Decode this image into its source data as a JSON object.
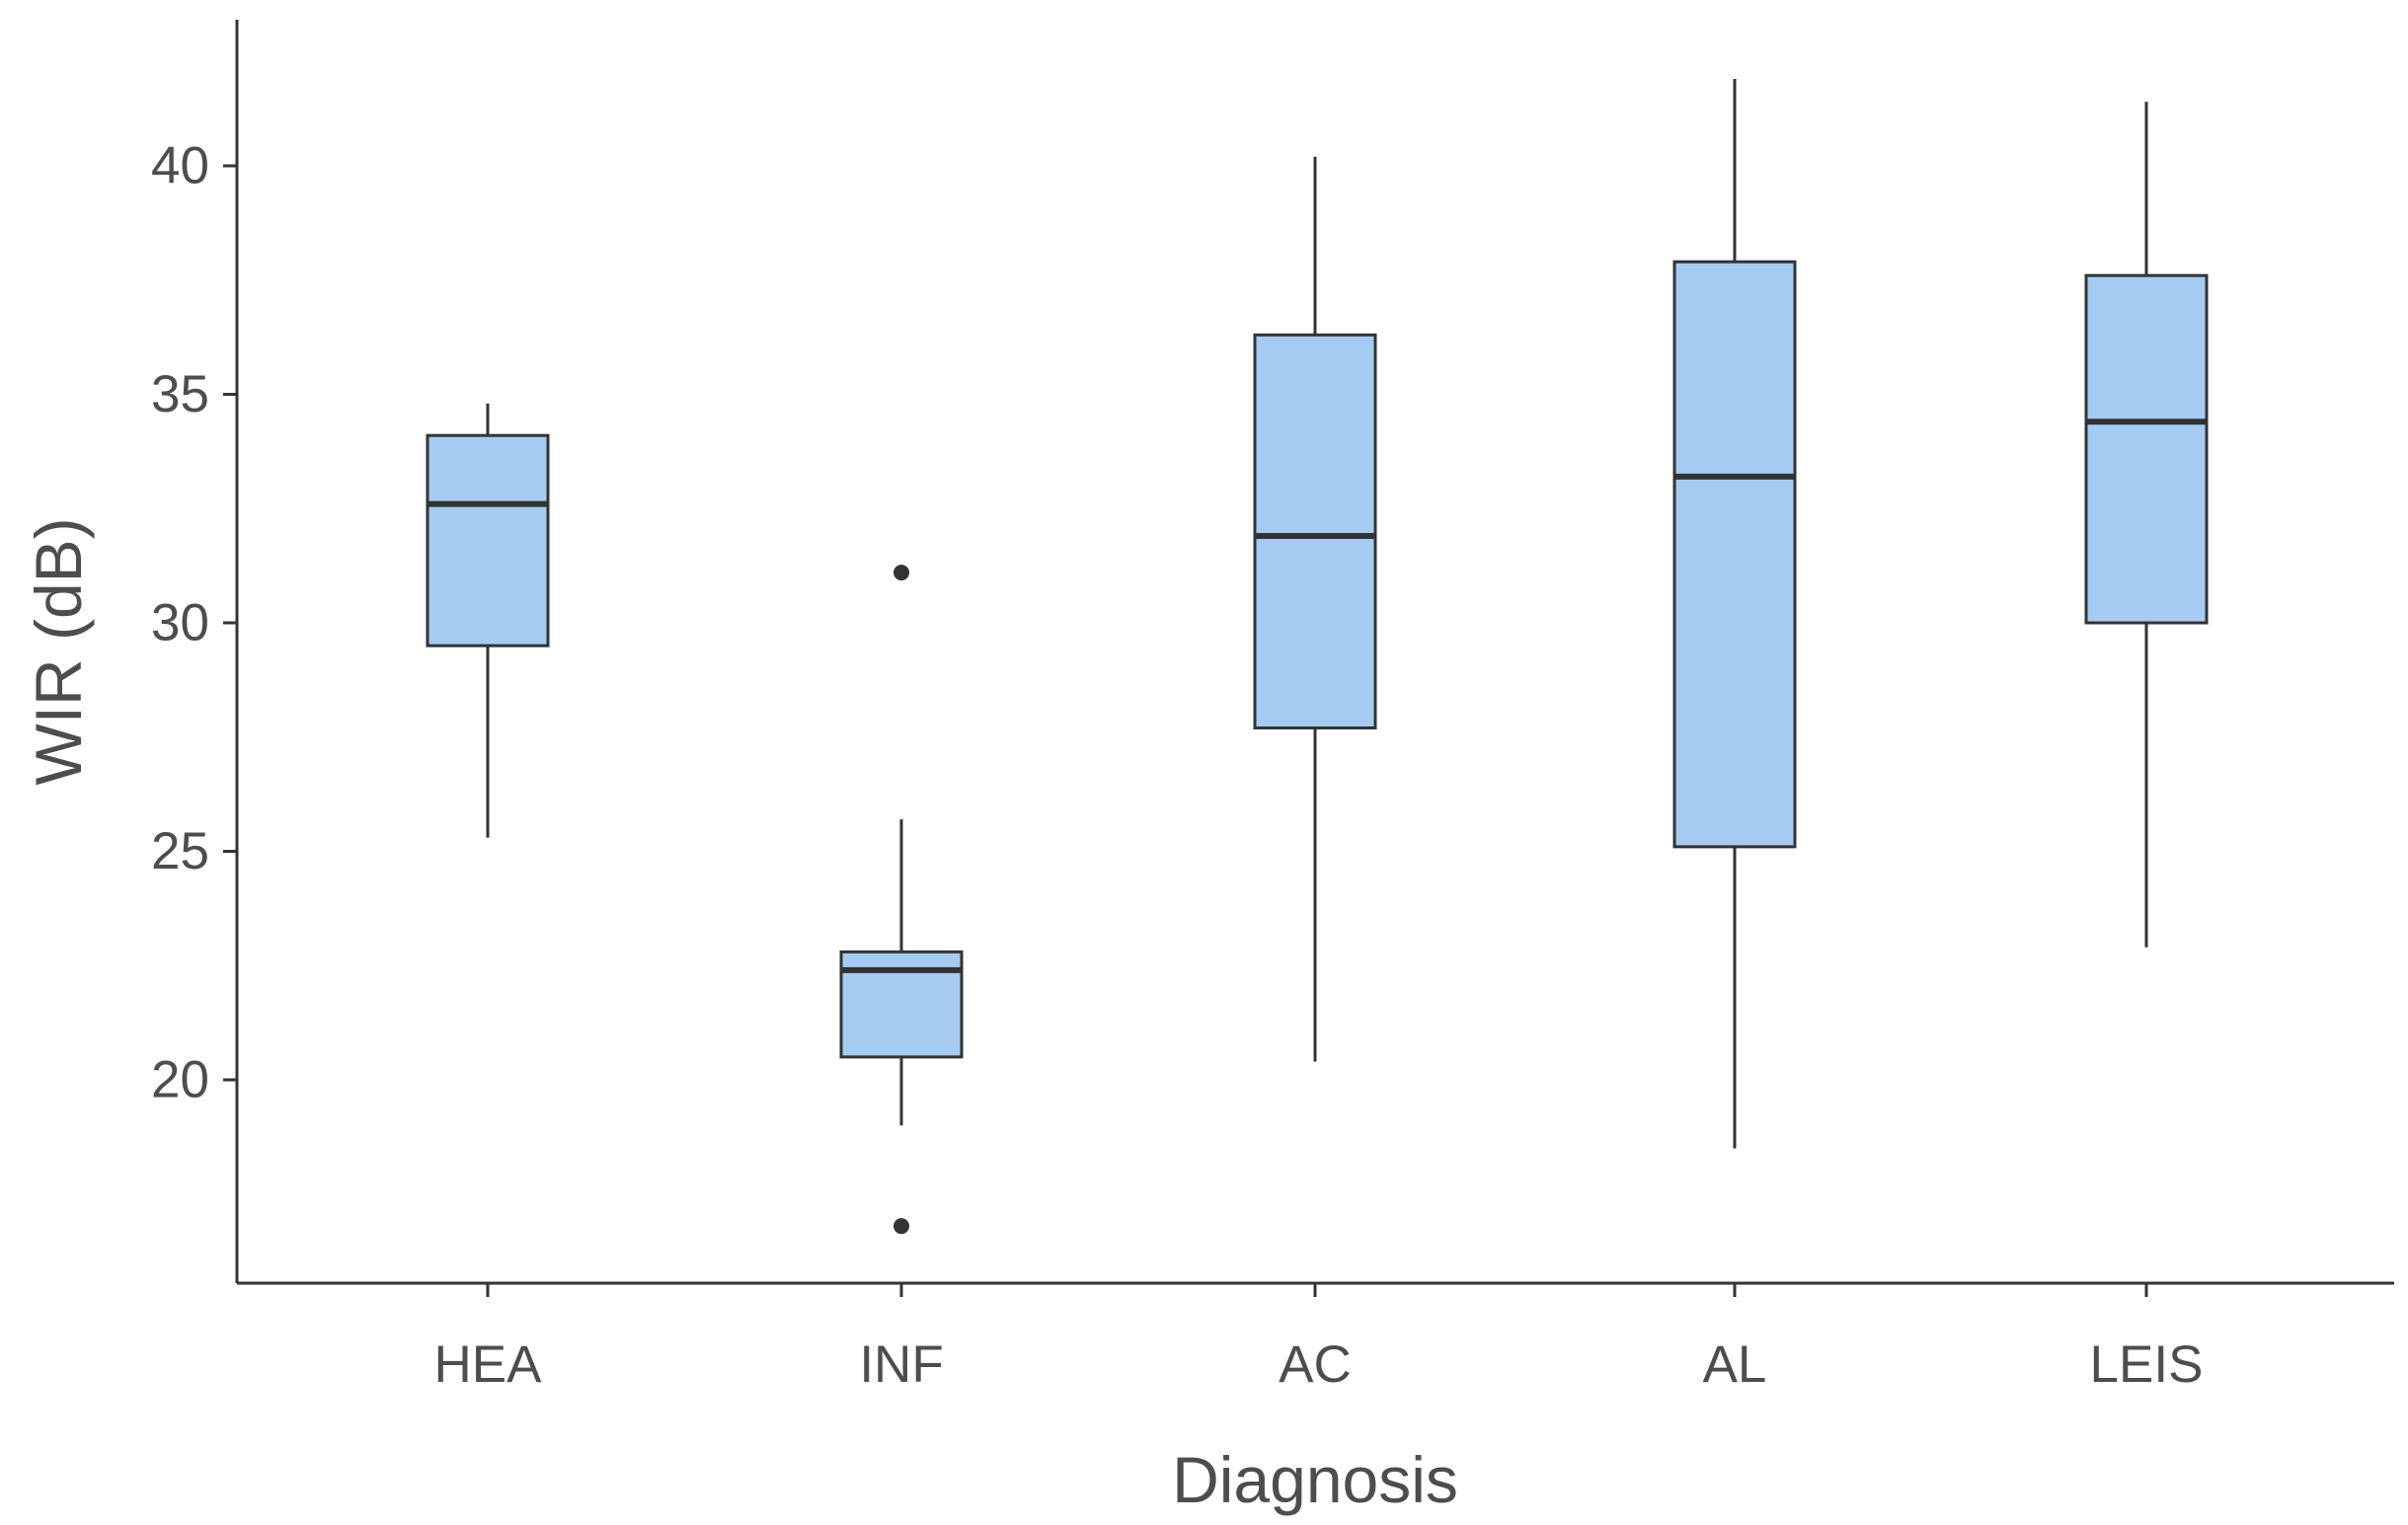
{
  "chart_data": {
    "type": "boxplot",
    "title": "",
    "xlabel": "Diagnosis",
    "ylabel": "WIR (dB)",
    "ylim": [
      15.5,
      43.5
    ],
    "yticks": [
      20,
      25,
      30,
      35,
      40
    ],
    "ytick_labels": [
      "20",
      "25",
      "30",
      "35",
      "40"
    ],
    "grid": false,
    "categories": [
      "HEA",
      "INF",
      "AC",
      "AL",
      "LEIS"
    ],
    "boxes": [
      {
        "category": "HEA",
        "whisker_low": 25.3,
        "q1": 29.5,
        "median": 32.6,
        "q3": 34.1,
        "whisker_high": 34.8,
        "outliers": []
      },
      {
        "category": "INF",
        "whisker_low": 19.0,
        "q1": 20.5,
        "median": 22.4,
        "q3": 22.8,
        "whisker_high": 25.7,
        "outliers": [
          16.8,
          31.1
        ]
      },
      {
        "category": "AC",
        "whisker_low": 20.4,
        "q1": 27.7,
        "median": 31.9,
        "q3": 36.3,
        "whisker_high": 40.2,
        "outliers": []
      },
      {
        "category": "AL",
        "whisker_low": 18.5,
        "q1": 25.1,
        "median": 33.2,
        "q3": 37.9,
        "whisker_high": 41.9,
        "outliers": []
      },
      {
        "category": "LEIS",
        "whisker_low": 22.9,
        "q1": 30.0,
        "median": 34.4,
        "q3": 37.6,
        "whisker_high": 41.4,
        "outliers": []
      }
    ],
    "colors": {
      "box_fill": "#a6cbf3",
      "box_stroke": "#333333",
      "axis": "#333333",
      "text": "#4d4d4d",
      "background": "#ffffff"
    }
  }
}
